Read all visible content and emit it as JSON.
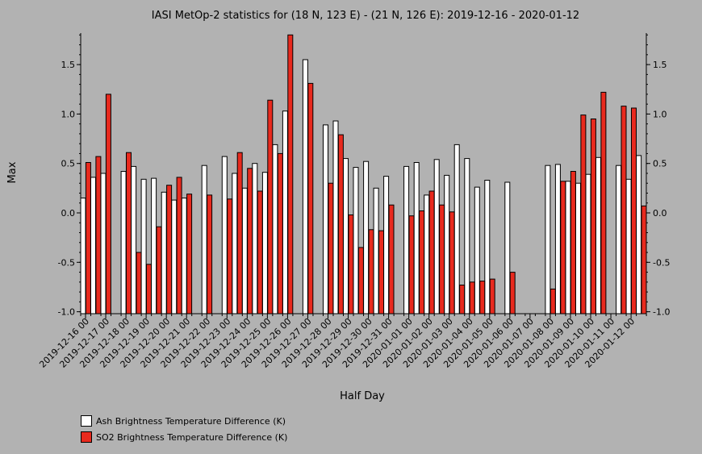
{
  "chart_data": {
    "type": "bar",
    "title": "IASI MetOp-2 statistics for (18 N, 123 E) - (21 N, 126 E): 2019-12-16 - 2020-01-12",
    "xlabel": "Half Day",
    "ylabel": "Max",
    "ylim": [
      -1.0,
      1.8
    ],
    "yticks": [
      "1.5",
      "1.0",
      "0.5",
      "0.0",
      "-0.5",
      "-1.0"
    ],
    "grid": false,
    "legend_position": "bottom-left",
    "categories": [
      "2019-12-16 00",
      "2019-12-16 12",
      "2019-12-17 00",
      "2019-12-17 12",
      "2019-12-18 00",
      "2019-12-18 12",
      "2019-12-19 00",
      "2019-12-19 12",
      "2019-12-20 00",
      "2019-12-20 12",
      "2019-12-21 00",
      "2019-12-21 12",
      "2019-12-22 00",
      "2019-12-22 12",
      "2019-12-23 00",
      "2019-12-23 12",
      "2019-12-24 00",
      "2019-12-24 12",
      "2019-12-25 00",
      "2019-12-25 12",
      "2019-12-26 00",
      "2019-12-26 12",
      "2019-12-27 00",
      "2019-12-27 12",
      "2019-12-28 00",
      "2019-12-28 12",
      "2019-12-29 00",
      "2019-12-29 12",
      "2019-12-30 00",
      "2019-12-30 12",
      "2019-12-31 00",
      "2019-12-31 12",
      "2020-01-01 00",
      "2020-01-01 12",
      "2020-01-02 00",
      "2020-01-02 12",
      "2020-01-03 00",
      "2020-01-03 12",
      "2020-01-04 00",
      "2020-01-04 12",
      "2020-01-05 00",
      "2020-01-05 12",
      "2020-01-06 00",
      "2020-01-06 12",
      "2020-01-07 00",
      "2020-01-07 12",
      "2020-01-08 00",
      "2020-01-08 12",
      "2020-01-09 00",
      "2020-01-09 12",
      "2020-01-10 00",
      "2020-01-10 12",
      "2020-01-11 00",
      "2020-01-11 12",
      "2020-01-12 00",
      "2020-01-12 12"
    ],
    "xtick_labels": [
      "2019-12-16 00",
      "2019-12-17 00",
      "2019-12-18 00",
      "2019-12-19 00",
      "2019-12-20 00",
      "2019-12-21 00",
      "2019-12-22 00",
      "2019-12-23 00",
      "2019-12-24 00",
      "2019-12-25 00",
      "2019-12-26 00",
      "2019-12-27 00",
      "2019-12-28 00",
      "2019-12-29 00",
      "2019-12-30 00",
      "2019-12-31 00",
      "2020-01-01 00",
      "2020-01-02 00",
      "2020-01-03 00",
      "2020-01-04 00",
      "2020-01-05 00",
      "2020-01-06 00",
      "2020-01-07 00",
      "2020-01-08 00",
      "2020-01-09 00",
      "2020-01-10 00",
      "2020-01-11 00",
      "2020-01-12 00"
    ],
    "series": [
      {
        "name": "Ash Brightness Temperature Difference (K)",
        "color": "#ffffff",
        "values": [
          0.15,
          0.36,
          0.4,
          null,
          0.42,
          0.47,
          0.34,
          0.35,
          0.21,
          0.13,
          0.15,
          null,
          0.48,
          null,
          0.57,
          0.4,
          0.25,
          0.5,
          0.41,
          0.69,
          1.03,
          null,
          1.55,
          null,
          0.89,
          0.93,
          0.55,
          0.46,
          0.52,
          0.25,
          0.37,
          null,
          0.47,
          0.51,
          0.18,
          0.54,
          0.38,
          0.69,
          0.55,
          0.26,
          0.33,
          null,
          0.31,
          null,
          null,
          null,
          0.48,
          0.49,
          0.32,
          0.3,
          0.39,
          0.56,
          null,
          0.48,
          0.34,
          0.58
        ]
      },
      {
        "name": "SO2 Brightness Temperature Difference (K)",
        "color": "#e82a1e",
        "values": [
          0.51,
          0.57,
          1.2,
          null,
          0.61,
          -0.4,
          -0.52,
          -0.14,
          0.28,
          0.36,
          0.19,
          null,
          0.18,
          null,
          0.14,
          0.61,
          0.45,
          0.22,
          1.14,
          0.6,
          1.82,
          null,
          1.31,
          null,
          0.3,
          0.79,
          -0.02,
          -0.35,
          -0.17,
          -0.18,
          0.08,
          null,
          -0.03,
          0.02,
          0.22,
          0.08,
          0.01,
          -0.73,
          -0.7,
          -0.69,
          -0.67,
          null,
          -0.6,
          null,
          null,
          null,
          -0.77,
          0.32,
          0.42,
          0.99,
          0.95,
          1.22,
          null,
          1.08,
          1.06,
          0.07
        ]
      }
    ]
  }
}
